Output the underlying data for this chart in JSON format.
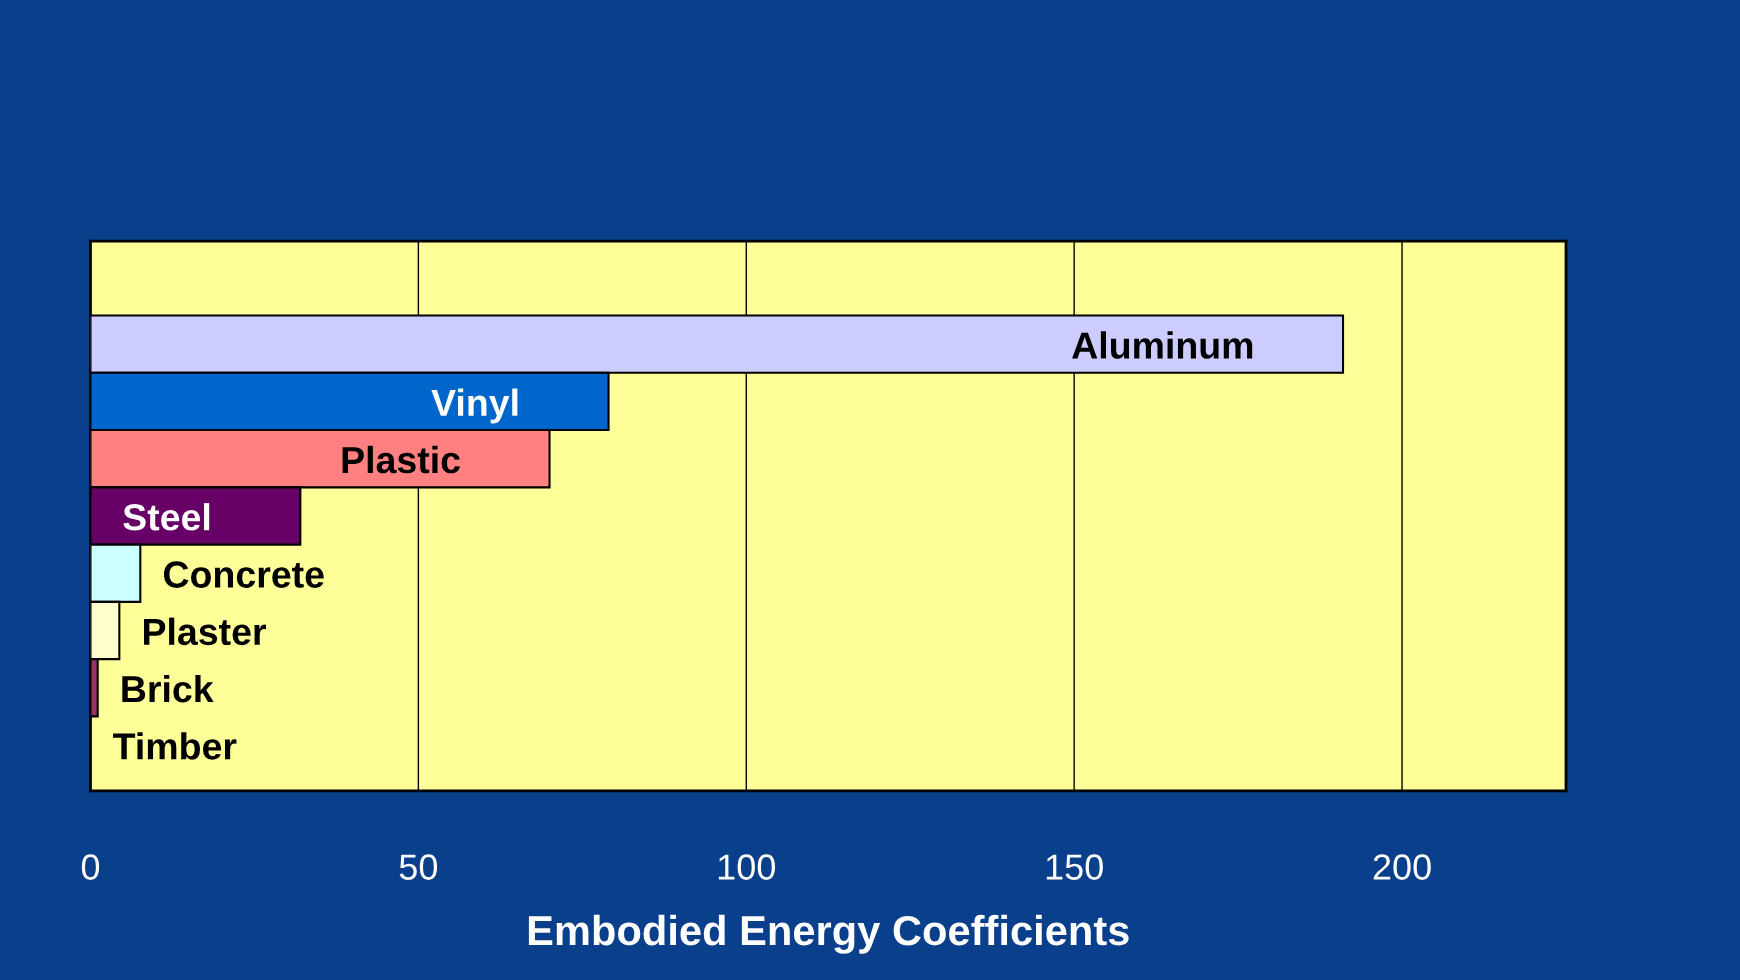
{
  "chart_data": {
    "type": "bar",
    "orientation": "horizontal",
    "xlabel": "Embodied Energy Coefficients",
    "categories": [
      "Aluminum",
      "Vinyl",
      "Plastic",
      "Steel",
      "Concrete",
      "Plaster",
      "Brick",
      "Timber"
    ],
    "values": [
      191,
      79,
      70,
      32,
      7.6,
      4.4,
      1.1,
      0
    ],
    "colors": [
      "#ccccff",
      "#0066cc",
      "#ff8080",
      "#660066",
      "#ccffff",
      "#ffffcc",
      "#993366",
      "#ffffcc"
    ],
    "xlim": [
      0,
      225
    ],
    "xticks": [
      0,
      50,
      100,
      150,
      200
    ],
    "grid": "x"
  }
}
